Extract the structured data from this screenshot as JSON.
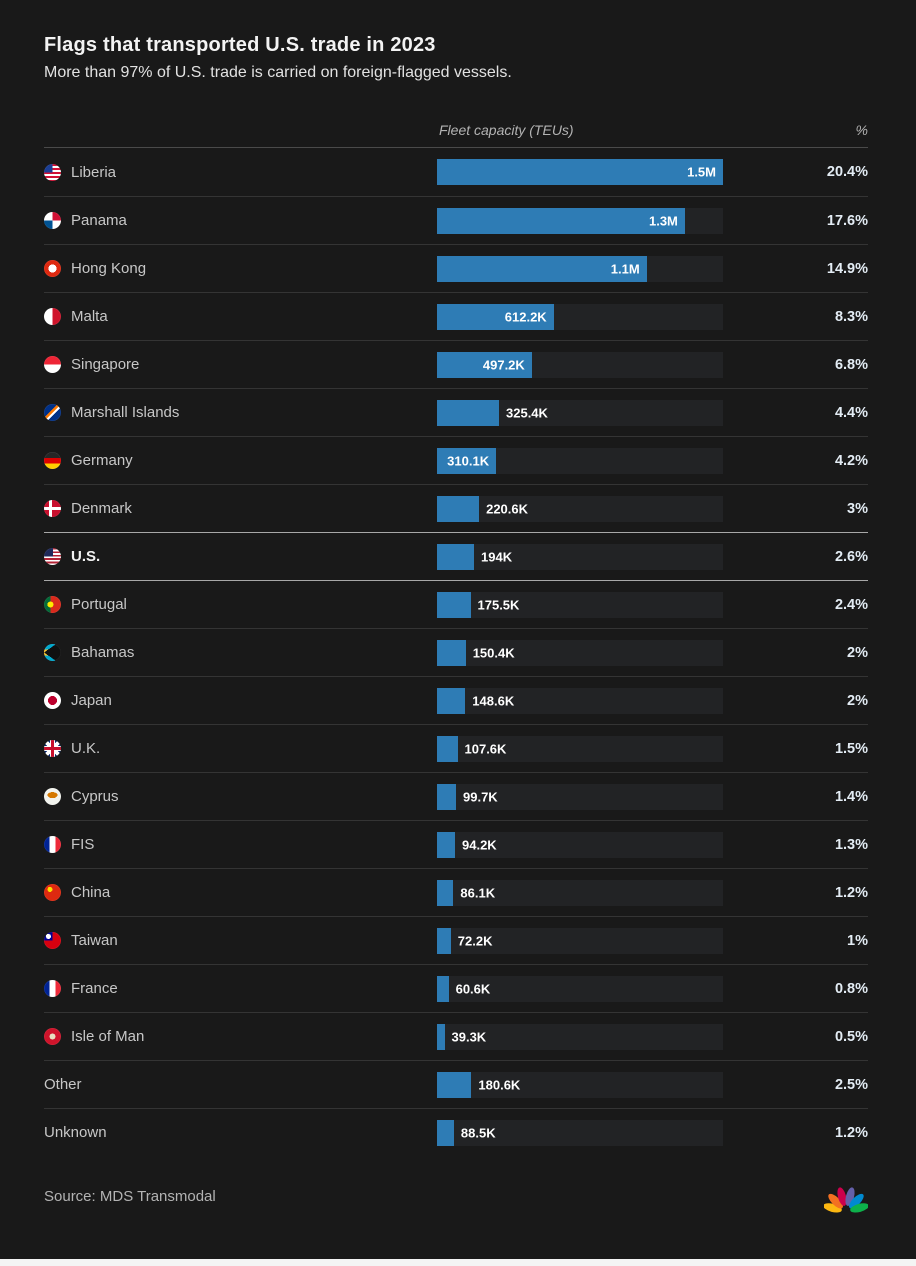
{
  "title": "Flags that transported U.S. trade in 2023",
  "subtitle": "More than 97% of U.S. trade is carried on foreign-flagged vessels.",
  "columns": {
    "bar": "Fleet capacity (TEUs)",
    "pct": "%"
  },
  "source": "Source: MDS Transmodal",
  "logo": "nbc-peacock",
  "colors": {
    "background": "#191919",
    "bar": "#2e7cb5",
    "highlight_divider": "#a8a8a8"
  },
  "chart_data": {
    "type": "bar",
    "orientation": "horizontal",
    "title": "Flags that transported U.S. trade in 2023",
    "subtitle": "More than 97% of U.S. trade is carried on foreign-flagged vessels.",
    "value_axis_label": "Fleet capacity (TEUs)",
    "percent_axis_label": "%",
    "max_value": 1500000,
    "rows": [
      {
        "label": "Liberia",
        "flag": "liberia",
        "value": 1500000,
        "value_label": "1.5M",
        "pct": "20.4%",
        "label_inside": true,
        "highlight": false
      },
      {
        "label": "Panama",
        "flag": "panama",
        "value": 1300000,
        "value_label": "1.3M",
        "pct": "17.6%",
        "label_inside": true,
        "highlight": false
      },
      {
        "label": "Hong Kong",
        "flag": "hongkong",
        "value": 1100000,
        "value_label": "1.1M",
        "pct": "14.9%",
        "label_inside": true,
        "highlight": false
      },
      {
        "label": "Malta",
        "flag": "malta",
        "value": 612200,
        "value_label": "612.2K",
        "pct": "8.3%",
        "label_inside": true,
        "highlight": false
      },
      {
        "label": "Singapore",
        "flag": "singapore",
        "value": 497200,
        "value_label": "497.2K",
        "pct": "6.8%",
        "label_inside": true,
        "highlight": false
      },
      {
        "label": "Marshall Islands",
        "flag": "marshallislands",
        "value": 325400,
        "value_label": "325.4K",
        "pct": "4.4%",
        "label_inside": false,
        "highlight": false
      },
      {
        "label": "Germany",
        "flag": "germany",
        "value": 310100,
        "value_label": "310.1K",
        "pct": "4.2%",
        "label_inside": true,
        "highlight": false
      },
      {
        "label": "Denmark",
        "flag": "denmark",
        "value": 220600,
        "value_label": "220.6K",
        "pct": "3%",
        "label_inside": false,
        "highlight": false
      },
      {
        "label": "U.S.",
        "flag": "us",
        "value": 194000,
        "value_label": "194K",
        "pct": "2.6%",
        "label_inside": false,
        "highlight": true
      },
      {
        "label": "Portugal",
        "flag": "portugal",
        "value": 175500,
        "value_label": "175.5K",
        "pct": "2.4%",
        "label_inside": false,
        "highlight": false
      },
      {
        "label": "Bahamas",
        "flag": "bahamas",
        "value": 150400,
        "value_label": "150.4K",
        "pct": "2%",
        "label_inside": false,
        "highlight": false
      },
      {
        "label": "Japan",
        "flag": "japan",
        "value": 148600,
        "value_label": "148.6K",
        "pct": "2%",
        "label_inside": false,
        "highlight": false
      },
      {
        "label": "U.K.",
        "flag": "uk",
        "value": 107600,
        "value_label": "107.6K",
        "pct": "1.5%",
        "label_inside": false,
        "highlight": false
      },
      {
        "label": "Cyprus",
        "flag": "cyprus",
        "value": 99700,
        "value_label": "99.7K",
        "pct": "1.4%",
        "label_inside": false,
        "highlight": false
      },
      {
        "label": "FIS",
        "flag": "fis",
        "value": 94200,
        "value_label": "94.2K",
        "pct": "1.3%",
        "label_inside": false,
        "highlight": false
      },
      {
        "label": "China",
        "flag": "china",
        "value": 86100,
        "value_label": "86.1K",
        "pct": "1.2%",
        "label_inside": false,
        "highlight": false
      },
      {
        "label": "Taiwan",
        "flag": "taiwan",
        "value": 72200,
        "value_label": "72.2K",
        "pct": "1%",
        "label_inside": false,
        "highlight": false
      },
      {
        "label": "France",
        "flag": "france",
        "value": 60600,
        "value_label": "60.6K",
        "pct": "0.8%",
        "label_inside": false,
        "highlight": false
      },
      {
        "label": "Isle of Man",
        "flag": "isleofman",
        "value": 39300,
        "value_label": "39.3K",
        "pct": "0.5%",
        "label_inside": false,
        "highlight": false
      },
      {
        "label": "Other",
        "flag": null,
        "value": 180600,
        "value_label": "180.6K",
        "pct": "2.5%",
        "label_inside": false,
        "highlight": false
      },
      {
        "label": "Unknown",
        "flag": null,
        "value": 88500,
        "value_label": "88.5K",
        "pct": "1.2%",
        "label_inside": false,
        "highlight": false
      }
    ]
  }
}
